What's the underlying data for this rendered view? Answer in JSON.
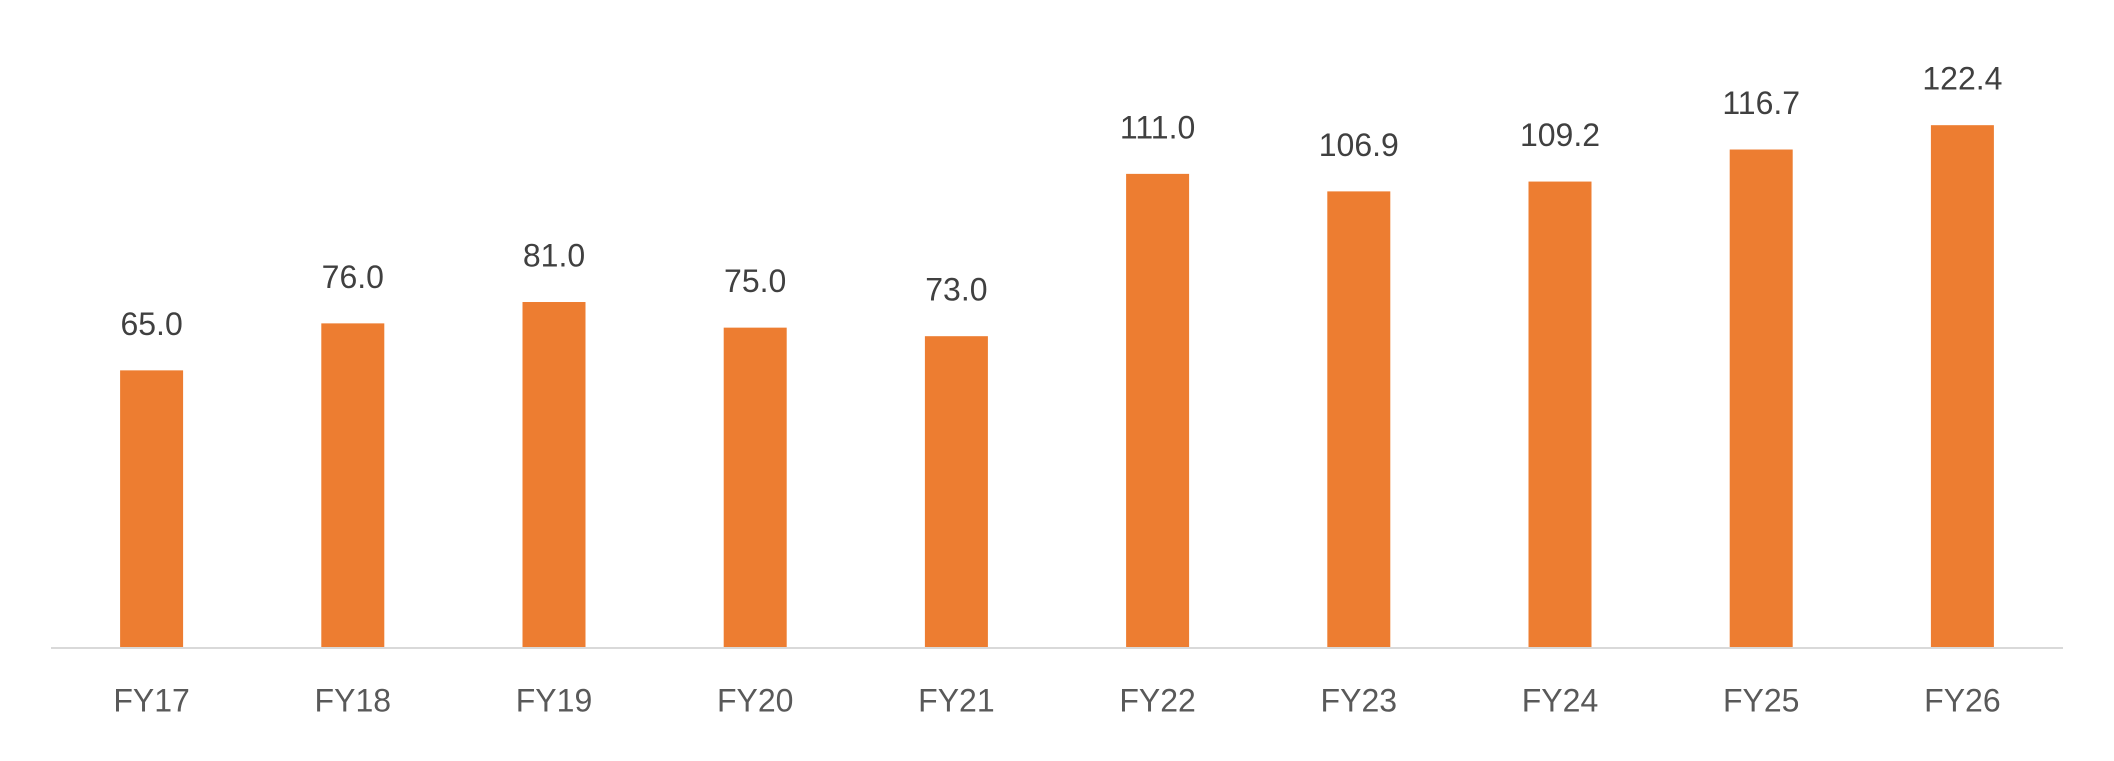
{
  "chart_data": {
    "type": "bar",
    "categories": [
      "FY17",
      "FY18",
      "FY19",
      "FY20",
      "FY21",
      "FY22",
      "FY23",
      "FY24",
      "FY25",
      "FY26"
    ],
    "values": [
      65.0,
      76.0,
      81.0,
      75.0,
      73.0,
      111.0,
      106.9,
      109.2,
      116.7,
      122.4
    ],
    "value_labels": [
      "65.0",
      "76.0",
      "81.0",
      "75.0",
      "73.0",
      "111.0",
      "106.9",
      "109.2",
      "116.7",
      "122.4"
    ],
    "color": "#ed7d31",
    "ylim": [
      0,
      140
    ]
  }
}
